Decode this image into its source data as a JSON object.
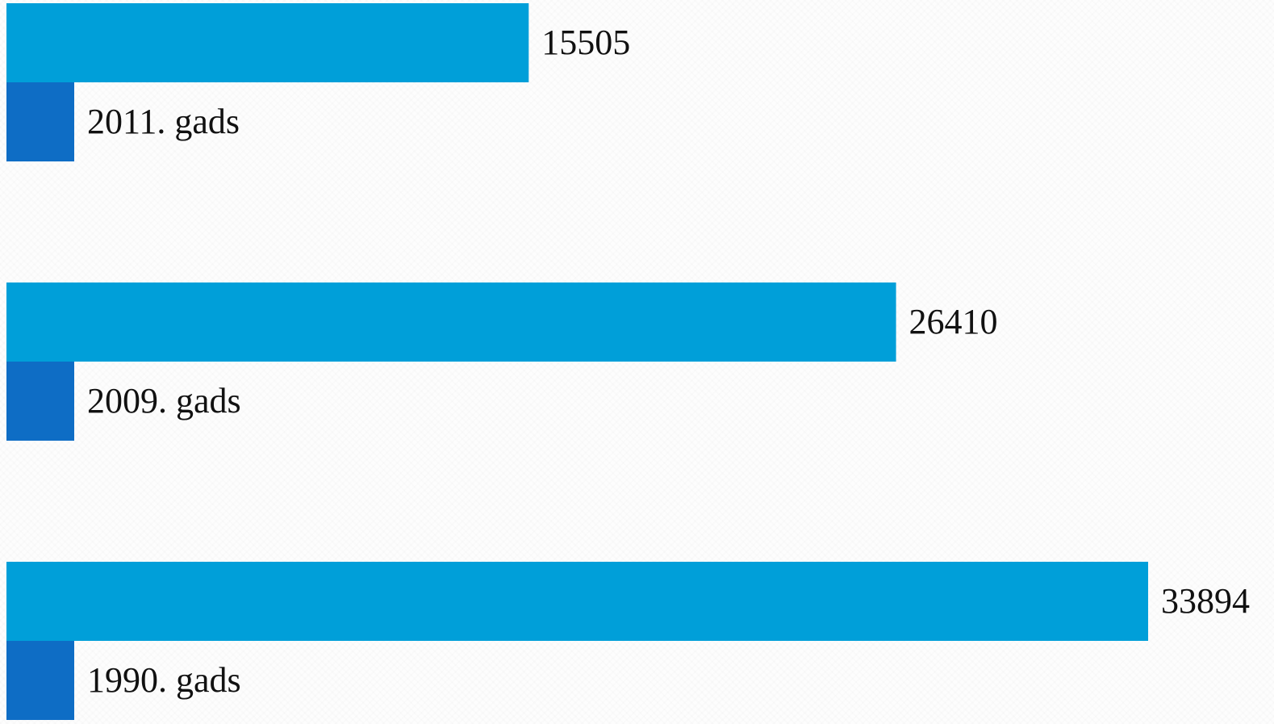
{
  "chart_data": {
    "type": "bar",
    "orientation": "horizontal",
    "categories": [
      "2011. gads",
      "2009. gads",
      "1990. gads"
    ],
    "values": [
      15505,
      26410,
      33894
    ],
    "title": "",
    "xlabel": "",
    "ylabel": "",
    "xlim": [
      0,
      33894
    ],
    "grid": false,
    "legend": "none"
  },
  "colors": {
    "bar": "#009fd9",
    "marker": "#0e6dc5",
    "text": "#111111"
  }
}
